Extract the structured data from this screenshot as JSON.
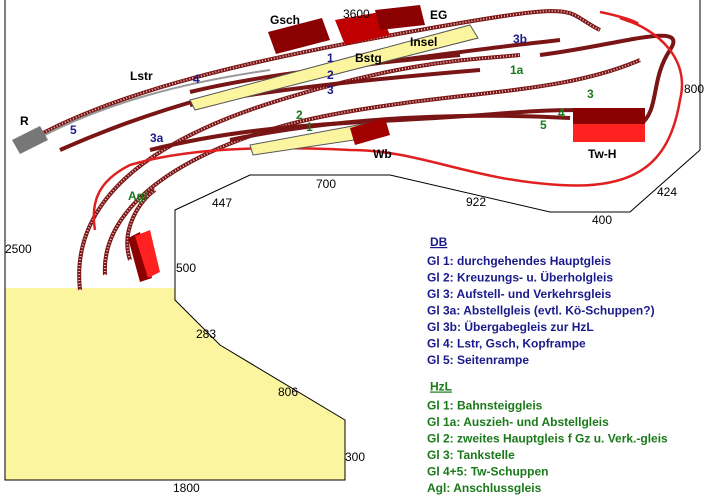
{
  "buildings": [
    "Gsch",
    "EG",
    "Bstg",
    "Insel",
    "R",
    "Lstr",
    "Wb",
    "Tw-H",
    "Agl"
  ],
  "db_track_labels": [
    "1",
    "2",
    "3",
    "4",
    "5",
    "3a",
    "3b"
  ],
  "hzl_track_labels": [
    "1a",
    "1",
    "2",
    "3",
    "4",
    "5"
  ],
  "dimensions": [
    "3600",
    "800",
    "424",
    "400",
    "922",
    "700",
    "447",
    "500",
    "2500",
    "283",
    "806",
    "300",
    "1800"
  ],
  "legend": [
    {
      "title": "DB",
      "items": [
        "Gl 1: durchgehendes Hauptgleis",
        "Gl 2: Kreuzungs- u. Überholgleis",
        "Gl 3: Aufstell- und Verkehrsgleis",
        "Gl 3a: Abstellgleis (evtl. Kö-Schuppen?)",
        "Gl 3b: Übergabegleis zur HzL",
        "Gl 4: Lstr, Gsch, Kopframpe",
        "Gl 5: Seitenrampe"
      ]
    },
    {
      "title": "HzL",
      "items": [
        "Gl 1: Bahnsteiggleis",
        "Gl 1a: Auszieh- und Abstellgleis",
        "Gl 2: zweites Hauptgleis f Gz u. Verk.-gleis",
        "Gl 3: Tankstelle",
        "Gl 4+5: Tw-Schuppen",
        "Agl: Anschlussgleis"
      ]
    }
  ]
}
